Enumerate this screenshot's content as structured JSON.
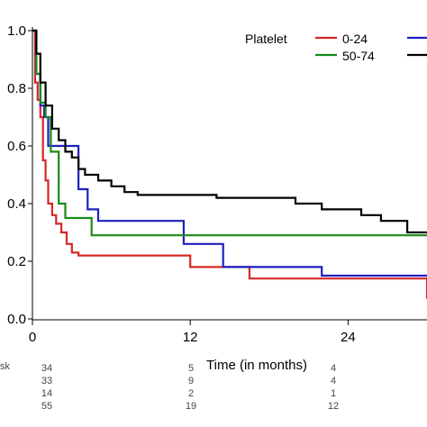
{
  "chart_data": {
    "type": "line",
    "step": true,
    "xlabel": "Time (in months)",
    "ylabel": "",
    "xlim": [
      0,
      30
    ],
    "ylim": [
      0,
      1.0
    ],
    "x_ticks": [
      0,
      12,
      24
    ],
    "y_ticks": [
      "0.0",
      "0.2",
      "0.4",
      "0.6",
      "0.8",
      "1.0"
    ],
    "grid": false,
    "legend": {
      "title": "Platelet",
      "placement": "top-right",
      "entries": [
        {
          "label": "0-24",
          "color": "#d62728"
        },
        {
          "label": "",
          "color": "#1f1fbf"
        },
        {
          "label": "50-74",
          "color": "#1a8a1a"
        },
        {
          "label": "",
          "color": "#000000"
        }
      ]
    },
    "series": [
      {
        "name": "0-24",
        "color": "#d62728",
        "x": [
          0,
          0.2,
          0.4,
          0.6,
          0.8,
          1.0,
          1.2,
          1.5,
          1.8,
          2.2,
          2.6,
          3.0,
          3.5,
          12,
          16,
          16.5,
          20,
          30
        ],
        "y": [
          1.0,
          0.82,
          0.76,
          0.7,
          0.55,
          0.48,
          0.4,
          0.36,
          0.33,
          0.3,
          0.26,
          0.23,
          0.22,
          0.18,
          0.18,
          0.14,
          0.14,
          0.07
        ]
      },
      {
        "name": "",
        "color": "#1f1fbf",
        "x": [
          0,
          0.3,
          0.6,
          0.9,
          1.2,
          2.5,
          3.5,
          4.2,
          5.0,
          11.5,
          14.5,
          22,
          30
        ],
        "y": [
          1.0,
          0.85,
          0.74,
          0.7,
          0.6,
          0.6,
          0.45,
          0.38,
          0.34,
          0.26,
          0.18,
          0.15,
          0.15
        ]
      },
      {
        "name": "50-74",
        "color": "#1a8a1a",
        "x": [
          0,
          0.3,
          0.6,
          1.0,
          1.4,
          2.0,
          2.5,
          3.5,
          4.5,
          30
        ],
        "y": [
          1.0,
          0.85,
          0.75,
          0.7,
          0.58,
          0.4,
          0.35,
          0.35,
          0.29,
          0.29
        ]
      },
      {
        "name": "",
        "color": "#000000",
        "x": [
          0,
          0.3,
          0.6,
          1.0,
          1.5,
          2.0,
          2.5,
          3.0,
          3.5,
          4.0,
          5.0,
          6.0,
          7.0,
          8.0,
          10.0,
          14.0,
          20.0,
          22.0,
          25.0,
          26.5,
          28.5,
          30
        ],
        "y": [
          1.0,
          0.92,
          0.82,
          0.74,
          0.66,
          0.62,
          0.58,
          0.56,
          0.52,
          0.5,
          0.48,
          0.46,
          0.44,
          0.43,
          0.43,
          0.42,
          0.4,
          0.38,
          0.36,
          0.34,
          0.3,
          0.3
        ]
      }
    ],
    "at_risk": {
      "header": "sk",
      "rows": [
        [
          "34",
          "5",
          "4"
        ],
        [
          "33",
          "9",
          "4"
        ],
        [
          "14",
          "2",
          "1"
        ],
        [
          "55",
          "19",
          "12"
        ]
      ]
    }
  }
}
